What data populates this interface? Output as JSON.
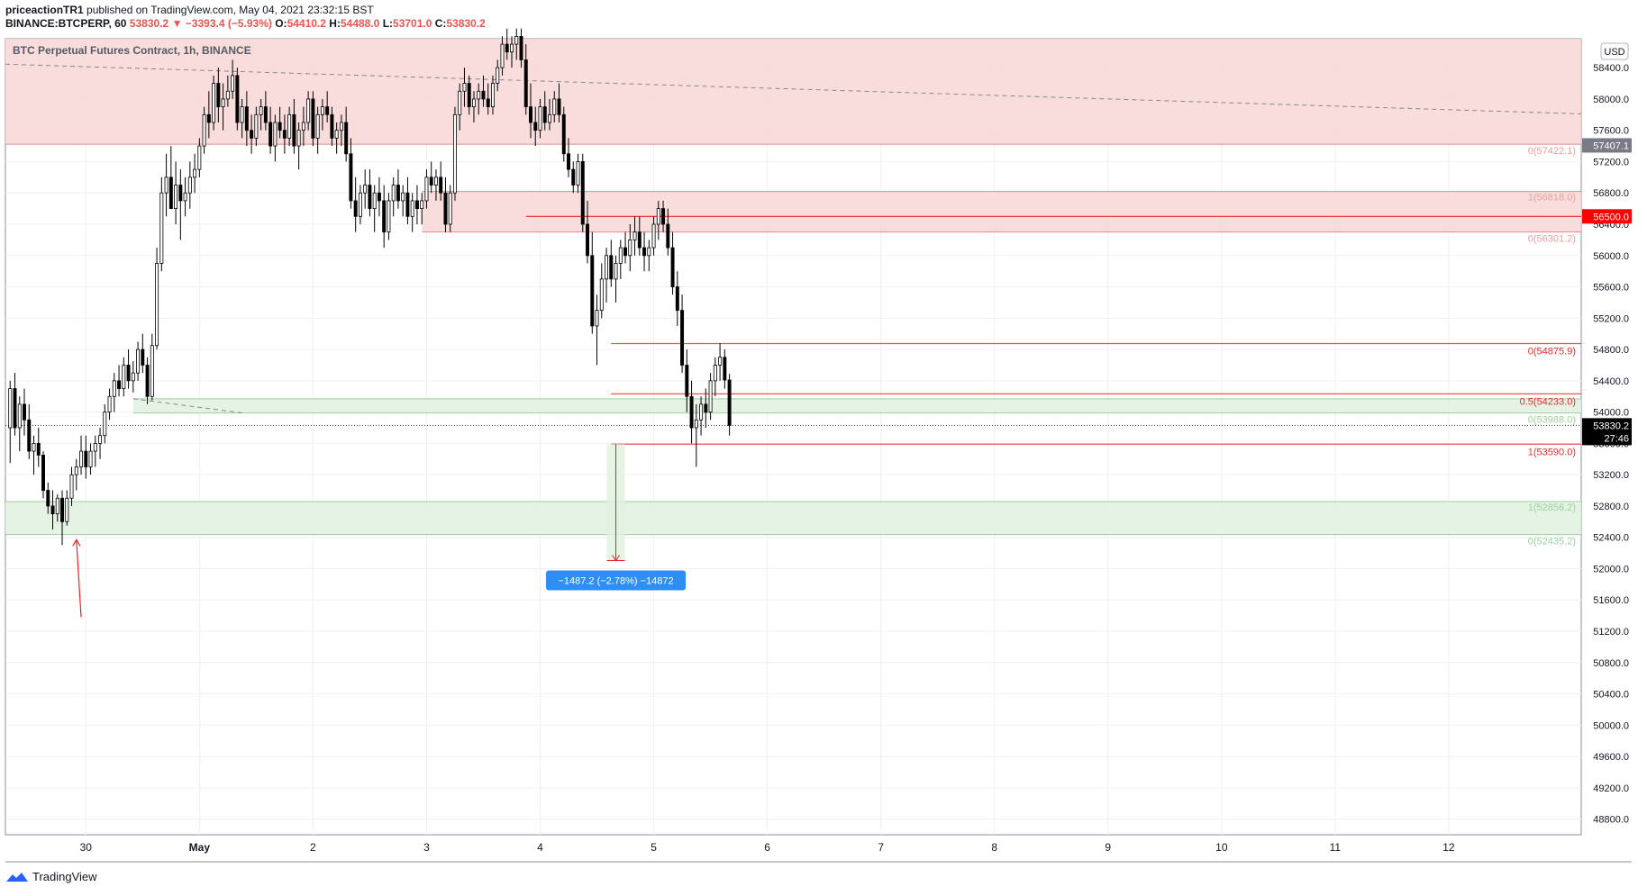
{
  "header": {
    "author": "priceactionTR1",
    "published": "published on TradingView.com, May 04, 2021 23:32:15 BST",
    "symbol": "BINANCE:BTCPERP, 60",
    "last": "53830.2",
    "change": "−3393.4 (−5.93%)",
    "o_label": "O:",
    "o": "54410.2",
    "h_label": "H:",
    "h": "54488.0",
    "l_label": "L:",
    "l": "53701.0",
    "c_label": "C:",
    "c": "53830.2"
  },
  "footer": {
    "brand": "TradingView"
  },
  "chart_data": {
    "type": "candlestick",
    "title": "BTC Perpetual Futures Contract, 1h, BINANCE",
    "currency": "USD",
    "y_ticks": [
      48800,
      49200,
      49600,
      50000,
      50400,
      50800,
      51200,
      51600,
      52000,
      52400,
      52800,
      53200,
      53600,
      54000,
      54400,
      54800,
      55200,
      55600,
      56000,
      56400,
      56800,
      57200,
      57600,
      58000,
      58400
    ],
    "y_tick_labels": [
      "48800.0",
      "49200.0",
      "49600.0",
      "50000.0",
      "50400.0",
      "50800.0",
      "51200.0",
      "51600.0",
      "52000.0",
      "52400.0",
      "52800.0",
      "53200.0",
      "53600.0",
      "54000.0",
      "54400.0",
      "54800.0",
      "55200.0",
      "55600.0",
      "56000.0",
      "56400.0",
      "56800.0",
      "57200.0",
      "57600.0",
      "58000.0",
      "58400.0"
    ],
    "x_ticks": [
      {
        "date": "2021-04-30",
        "label": "30",
        "bold": false
      },
      {
        "date": "2021-05-01",
        "label": "May",
        "bold": true
      },
      {
        "date": "2021-05-02",
        "label": "2",
        "bold": false
      },
      {
        "date": "2021-05-03",
        "label": "3",
        "bold": false
      },
      {
        "date": "2021-05-04",
        "label": "4",
        "bold": false
      },
      {
        "date": "2021-05-05",
        "label": "5",
        "bold": false
      },
      {
        "date": "2021-05-06",
        "label": "6",
        "bold": false
      },
      {
        "date": "2021-05-07",
        "label": "7",
        "bold": false
      },
      {
        "date": "2021-05-08",
        "label": "8",
        "bold": false
      },
      {
        "date": "2021-05-09",
        "label": "9",
        "bold": false
      },
      {
        "date": "2021-05-10",
        "label": "10",
        "bold": false
      },
      {
        "date": "2021-05-11",
        "label": "11",
        "bold": false
      },
      {
        "date": "2021-05-12",
        "label": "12",
        "bold": false
      }
    ],
    "x_range": [
      "2021-04-29 07:00",
      "2021-05-13 04:00"
    ],
    "y_range": [
      48600,
      58770
    ],
    "price_labels": [
      {
        "value": 57407.1,
        "text": "57407.1",
        "bg": "#787b86"
      },
      {
        "value": 56500.0,
        "text": "56500.0",
        "bg": "#ff0000"
      },
      {
        "value": 53830.2,
        "text": "53830.2",
        "text2": "27:46",
        "bg": "#000000"
      }
    ],
    "zones": [
      {
        "from": "2021-04-29 07:00",
        "to": "2021-05-13 04:00",
        "low": 57422.1,
        "high": 58770,
        "color": "#f8d7d7",
        "border": "#e08b8b",
        "label_low": "0(57422.1)"
      },
      {
        "from": "2021-05-02 23:00",
        "to": "2021-05-13 04:00",
        "low": 56301.2,
        "high": 56818.0,
        "color": "#f8d7d7",
        "border": "#e08b8b",
        "label_high": "1(56818.0)",
        "label_low": "0(56301.2)"
      },
      {
        "from": "2021-04-30 10:00",
        "to": "2021-05-13 04:00",
        "low": 53988.0,
        "high": 54170.0,
        "color": "#e0f1e0",
        "border": "#9ccf9c",
        "label_low": "0(53988.0)"
      },
      {
        "from": "2021-04-29 07:00",
        "to": "2021-05-13 04:00",
        "low": 52435.2,
        "high": 52856.2,
        "color": "#e0f1e0",
        "border": "#9ccf9c",
        "label_high": "1(52856.2)",
        "label_low": "0(52435.2)"
      }
    ],
    "hlines": [
      {
        "from": "2021-05-03 21:00",
        "value": 56500.0,
        "color": "#ef2020"
      },
      {
        "from": "2021-05-04 15:00",
        "value": 54875.9,
        "color": "#ef5350",
        "label": "0(54875.9)"
      },
      {
        "from": "2021-05-04 15:00",
        "value": 54233.0,
        "color": "#ef5350",
        "label": "0.5(54233.0)"
      },
      {
        "from": "2021-05-04 15:00",
        "value": 53590.0,
        "color": "#ef5350",
        "label": "1(53590.0)"
      }
    ],
    "trendlines": [
      {
        "x1": "2021-04-29 07:00",
        "y1": 58445,
        "x2": "2021-05-13 04:00",
        "y2": 57810,
        "color": "#888888",
        "dash": true
      },
      {
        "x1": "2021-04-30 10:00",
        "y1": 54170,
        "x2": "2021-05-01 09:00",
        "y2": 53990,
        "color": "#888888",
        "dash": true
      }
    ],
    "arrow": {
      "x1": "2021-04-29 23:00",
      "y1": 51380,
      "x2": "2021-04-29 22:00",
      "y2": 52370,
      "color": "#ef2020"
    },
    "measure": {
      "date": "2021-05-04 16:00",
      "from": 53590.0,
      "to": 52103.0,
      "label": "−1487.2 (−2.78%) −14872"
    },
    "candles": [
      [
        53800,
        54400,
        53350,
        54300
      ],
      [
        54300,
        54500,
        53700,
        53800
      ],
      [
        53800,
        54200,
        53500,
        54100
      ],
      [
        54100,
        54300,
        53700,
        53900
      ],
      [
        53900,
        54100,
        53400,
        53500
      ],
      [
        53500,
        53700,
        53200,
        53600
      ],
      [
        53600,
        53800,
        53300,
        53450
      ],
      [
        53450,
        53500,
        52900,
        53000
      ],
      [
        53000,
        53100,
        52700,
        52800
      ],
      [
        52800,
        53000,
        52500,
        52700
      ],
      [
        52700,
        52950,
        52600,
        52900
      ],
      [
        52900,
        53000,
        52300,
        52600
      ],
      [
        52600,
        53000,
        52550,
        52900
      ],
      [
        52900,
        53300,
        52800,
        53200
      ],
      [
        53200,
        53400,
        53000,
        53300
      ],
      [
        53300,
        53700,
        53200,
        53500
      ],
      [
        53500,
        53700,
        53150,
        53300
      ],
      [
        53300,
        53600,
        53200,
        53500
      ],
      [
        53500,
        53700,
        53300,
        53600
      ],
      [
        53600,
        53800,
        53400,
        53700
      ],
      [
        53700,
        54100,
        53600,
        54000
      ],
      [
        54000,
        54300,
        53900,
        54200
      ],
      [
        54200,
        54500,
        54000,
        54400
      ],
      [
        54400,
        54600,
        54200,
        54300
      ],
      [
        54300,
        54700,
        54200,
        54600
      ],
      [
        54600,
        54800,
        54300,
        54400
      ],
      [
        54400,
        54650,
        54250,
        54500
      ],
      [
        54500,
        54900,
        54400,
        54800
      ],
      [
        54800,
        55000,
        54500,
        54600
      ],
      [
        54600,
        54700,
        54100,
        54200
      ],
      [
        54200,
        55000,
        54150,
        54850
      ],
      [
        54850,
        56100,
        54800,
        55900
      ],
      [
        55900,
        57000,
        55800,
        56800
      ],
      [
        56800,
        57300,
        56500,
        57000
      ],
      [
        57000,
        57400,
        56700,
        56600
      ],
      [
        56600,
        57200,
        56400,
        56900
      ],
      [
        56900,
        57100,
        56200,
        56700
      ],
      [
        56700,
        57000,
        56500,
        56800
      ],
      [
        56800,
        57200,
        56600,
        57000
      ],
      [
        57000,
        57300,
        56800,
        57100
      ],
      [
        57100,
        57500,
        57000,
        57400
      ],
      [
        57400,
        57900,
        57300,
        57800
      ],
      [
        57800,
        58100,
        57500,
        57700
      ],
      [
        57700,
        58300,
        57600,
        58200
      ],
      [
        58200,
        58400,
        57700,
        57900
      ],
      [
        57900,
        58200,
        57600,
        58000
      ],
      [
        58000,
        58300,
        57900,
        58100
      ],
      [
        58100,
        58500,
        58000,
        58300
      ],
      [
        58300,
        58400,
        57600,
        57700
      ],
      [
        57700,
        58000,
        57500,
        57900
      ],
      [
        57900,
        58100,
        57400,
        57600
      ],
      [
        57600,
        57800,
        57300,
        57500
      ],
      [
        57500,
        57900,
        57400,
        57800
      ],
      [
        57800,
        58000,
        57600,
        57900
      ],
      [
        57900,
        58100,
        57600,
        57700
      ],
      [
        57700,
        57900,
        57300,
        57400
      ],
      [
        57400,
        57800,
        57200,
        57700
      ],
      [
        57700,
        57900,
        57500,
        57600
      ],
      [
        57600,
        57800,
        57300,
        57500
      ],
      [
        57500,
        57900,
        57400,
        57800
      ],
      [
        57800,
        58000,
        57300,
        57400
      ],
      [
        57400,
        57700,
        57100,
        57600
      ],
      [
        57600,
        57900,
        57400,
        57700
      ],
      [
        57700,
        58100,
        57600,
        58000
      ],
      [
        58000,
        58100,
        57400,
        57500
      ],
      [
        57500,
        57900,
        57300,
        57800
      ],
      [
        57800,
        58000,
        57600,
        57900
      ],
      [
        57900,
        58100,
        57700,
        57800
      ],
      [
        57800,
        57900,
        57400,
        57500
      ],
      [
        57500,
        57700,
        57300,
        57600
      ],
      [
        57600,
        57800,
        57400,
        57700
      ],
      [
        57700,
        57900,
        57200,
        57300
      ],
      [
        57300,
        57500,
        56600,
        56700
      ],
      [
        56700,
        57000,
        56300,
        56500
      ],
      [
        56500,
        56900,
        56400,
        56800
      ],
      [
        56800,
        57100,
        56600,
        56900
      ],
      [
        56900,
        57100,
        56500,
        56600
      ],
      [
        56600,
        56900,
        56300,
        56800
      ],
      [
        56800,
        57000,
        56500,
        56700
      ],
      [
        56700,
        56900,
        56100,
        56300
      ],
      [
        56300,
        56800,
        56200,
        56700
      ],
      [
        56700,
        57000,
        56500,
        56900
      ],
      [
        56900,
        57100,
        56600,
        56700
      ],
      [
        56700,
        56900,
        56500,
        56800
      ],
      [
        56800,
        57000,
        56400,
        56500
      ],
      [
        56500,
        56800,
        56300,
        56700
      ],
      [
        56700,
        56900,
        56400,
        56600
      ],
      [
        56600,
        56800,
        56400,
        56700
      ],
      [
        56700,
        57100,
        56600,
        57000
      ],
      [
        57000,
        57200,
        56800,
        56900
      ],
      [
        56900,
        57100,
        56700,
        57000
      ],
      [
        57000,
        57200,
        56700,
        56800
      ],
      [
        56800,
        57000,
        56300,
        56400
      ],
      [
        56400,
        56900,
        56300,
        56800
      ],
      [
        56800,
        57900,
        56700,
        57800
      ],
      [
        57800,
        58200,
        57600,
        58100
      ],
      [
        58100,
        58400,
        57900,
        58200
      ],
      [
        58200,
        58300,
        57800,
        57900
      ],
      [
        57900,
        58100,
        57700,
        58000
      ],
      [
        58000,
        58200,
        57800,
        58100
      ],
      [
        58100,
        58300,
        57900,
        58000
      ],
      [
        58000,
        58200,
        57800,
        57900
      ],
      [
        57900,
        58300,
        57800,
        58200
      ],
      [
        58200,
        58500,
        58100,
        58400
      ],
      [
        58400,
        58800,
        58300,
        58700
      ],
      [
        58700,
        58900,
        58500,
        58600
      ],
      [
        58600,
        58800,
        58400,
        58700
      ],
      [
        58700,
        58900,
        58500,
        58800
      ],
      [
        58800,
        58900,
        58400,
        58500
      ],
      [
        58500,
        58700,
        57800,
        57900
      ],
      [
        57900,
        58200,
        57500,
        57700
      ],
      [
        57700,
        57900,
        57400,
        57600
      ],
      [
        57600,
        58000,
        57500,
        57900
      ],
      [
        57900,
        58100,
        57600,
        57700
      ],
      [
        57700,
        58000,
        57600,
        57800
      ],
      [
        57800,
        58100,
        57700,
        58000
      ],
      [
        58000,
        58200,
        57700,
        57800
      ],
      [
        57800,
        57900,
        57200,
        57300
      ],
      [
        57300,
        57500,
        57000,
        57100
      ],
      [
        57100,
        57200,
        56800,
        56900
      ],
      [
        56900,
        57300,
        56800,
        57200
      ],
      [
        57200,
        57300,
        56300,
        56400
      ],
      [
        56400,
        56700,
        55900,
        56000
      ],
      [
        56000,
        56300,
        55000,
        55100
      ],
      [
        55100,
        55500,
        54600,
        55300
      ],
      [
        55300,
        55900,
        55200,
        55700
      ],
      [
        55700,
        56100,
        55400,
        56000
      ],
      [
        56000,
        56200,
        55600,
        55700
      ],
      [
        55700,
        56000,
        55400,
        55900
      ],
      [
        55900,
        56200,
        55700,
        56100
      ],
      [
        56100,
        56300,
        55900,
        56000
      ],
      [
        56000,
        56400,
        55800,
        56200
      ],
      [
        56200,
        56500,
        56000,
        56300
      ],
      [
        56300,
        56500,
        56000,
        56100
      ],
      [
        56100,
        56300,
        55800,
        56000
      ],
      [
        56000,
        56200,
        55800,
        56100
      ],
      [
        56100,
        56500,
        56000,
        56400
      ],
      [
        56400,
        56700,
        56200,
        56600
      ],
      [
        56600,
        56700,
        56300,
        56400
      ],
      [
        56400,
        56600,
        56000,
        56100
      ],
      [
        56100,
        56300,
        55500,
        55600
      ],
      [
        55600,
        55800,
        55100,
        55300
      ],
      [
        55300,
        55500,
        54500,
        54600
      ],
      [
        54600,
        54800,
        54000,
        54200
      ],
      [
        54200,
        54400,
        53600,
        53800
      ],
      [
        53800,
        54100,
        53300,
        53900
      ],
      [
        53900,
        54200,
        53700,
        54100
      ],
      [
        54100,
        54300,
        53800,
        54000
      ],
      [
        54000,
        54500,
        53900,
        54400
      ],
      [
        54400,
        54700,
        54200,
        54600
      ],
      [
        54600,
        54880,
        54400,
        54700
      ],
      [
        54700,
        54800,
        54300,
        54410
      ],
      [
        54410,
        54488,
        53701,
        53830.2
      ]
    ]
  }
}
